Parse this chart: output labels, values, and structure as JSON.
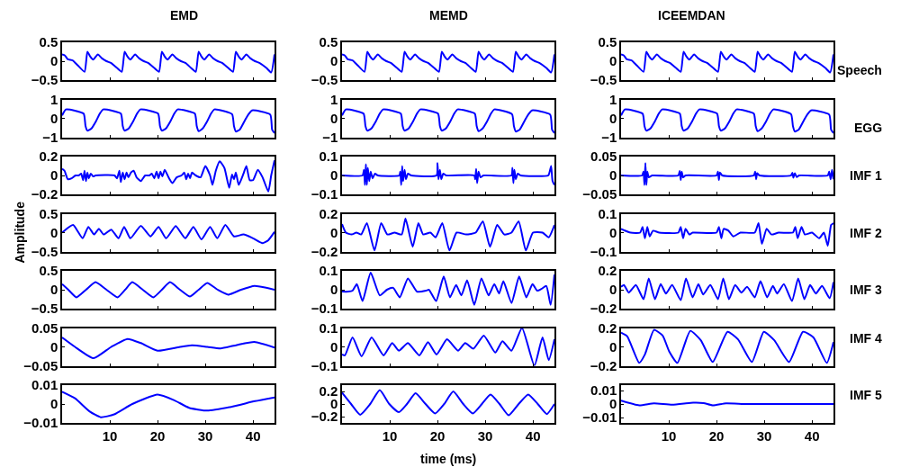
{
  "chart_data": [
    {
      "type": "line",
      "title": "EMD",
      "color": "#0000ff",
      "xlim": [
        0,
        44.5
      ],
      "xticks": [
        10,
        20,
        30,
        40
      ],
      "ylim": [
        -0.5,
        0.5
      ],
      "yticks": [
        -0.5,
        0,
        0.5
      ],
      "tick_labels": "y",
      "x": [
        0,
        0.6,
        1.2,
        2.2,
        3.2,
        4.7,
        5.3,
        5.9,
        6.5,
        7.5,
        8.3,
        9.3,
        10.3,
        11.5,
        12.5,
        13.1,
        13.7,
        14.3,
        15.3,
        16.1,
        17.1,
        18.1,
        19.3,
        20.3,
        20.9,
        21.5,
        22.1,
        23.1,
        23.9,
        24.9,
        25.9,
        27.0,
        28.0,
        28.6,
        29.2,
        29.8,
        30.8,
        31.6,
        32.6,
        33.6,
        34.8,
        35.8,
        36.4,
        37.0,
        37.6,
        38.6,
        39.4,
        40.4,
        41.4,
        42.8,
        43.8,
        44.5
      ],
      "values": [
        0.18,
        0.15,
        0.05,
        0.02,
        -0.1,
        -0.28,
        0.25,
        0.12,
        0.04,
        0.18,
        0.08,
        0.0,
        -0.05,
        -0.18,
        -0.28,
        0.25,
        0.12,
        0.04,
        0.18,
        0.08,
        0.0,
        -0.05,
        -0.18,
        -0.28,
        0.25,
        0.12,
        0.04,
        0.18,
        0.08,
        0.0,
        -0.05,
        -0.18,
        -0.28,
        0.25,
        0.12,
        0.04,
        0.18,
        0.08,
        0.0,
        -0.05,
        -0.18,
        -0.28,
        0.25,
        0.12,
        0.04,
        0.18,
        0.08,
        0.0,
        -0.05,
        -0.18,
        -0.3,
        0.18
      ]
    },
    {
      "type": "line",
      "title": "MEMD",
      "color": "#0000ff",
      "xlim": [
        0,
        44.5
      ],
      "xticks": [
        10,
        20,
        30,
        40
      ],
      "ylim": [
        -0.5,
        0.5
      ],
      "yticks": [
        -0.5,
        0,
        0.5
      ],
      "tick_labels": "y",
      "x": [
        0,
        0.6,
        1.2,
        2.2,
        3.2,
        4.7,
        5.3,
        5.9,
        6.5,
        7.5,
        8.3,
        9.3,
        10.3,
        11.5,
        12.5,
        13.1,
        13.7,
        14.3,
        15.3,
        16.1,
        17.1,
        18.1,
        19.3,
        20.3,
        20.9,
        21.5,
        22.1,
        23.1,
        23.9,
        24.9,
        25.9,
        27.0,
        28.0,
        28.6,
        29.2,
        29.8,
        30.8,
        31.6,
        32.6,
        33.6,
        34.8,
        35.8,
        36.4,
        37.0,
        37.6,
        38.6,
        39.4,
        40.4,
        41.4,
        42.8,
        43.8,
        44.5
      ],
      "values": [
        0.18,
        0.15,
        0.05,
        0.02,
        -0.1,
        -0.28,
        0.25,
        0.12,
        0.04,
        0.18,
        0.08,
        0.0,
        -0.05,
        -0.18,
        -0.28,
        0.25,
        0.12,
        0.04,
        0.18,
        0.08,
        0.0,
        -0.05,
        -0.18,
        -0.28,
        0.25,
        0.12,
        0.04,
        0.18,
        0.08,
        0.0,
        -0.05,
        -0.18,
        -0.28,
        0.25,
        0.12,
        0.04,
        0.18,
        0.08,
        0.0,
        -0.05,
        -0.18,
        -0.28,
        0.25,
        0.12,
        0.04,
        0.18,
        0.08,
        0.0,
        -0.05,
        -0.18,
        -0.3,
        0.18
      ]
    },
    {
      "type": "line",
      "title": "ICEEMDAN",
      "annotations": [
        "Speech"
      ],
      "color": "#0000ff",
      "xlim": [
        0,
        44.5
      ],
      "xticks": [
        10,
        20,
        30,
        40
      ],
      "ylim": [
        -0.5,
        0.5
      ],
      "yticks": [
        -0.5,
        0,
        0.5
      ],
      "tick_labels": "y",
      "x": [
        0,
        0.6,
        1.2,
        2.2,
        3.2,
        4.7,
        5.3,
        5.9,
        6.5,
        7.5,
        8.3,
        9.3,
        10.3,
        11.5,
        12.5,
        13.1,
        13.7,
        14.3,
        15.3,
        16.1,
        17.1,
        18.1,
        19.3,
        20.3,
        20.9,
        21.5,
        22.1,
        23.1,
        23.9,
        24.9,
        25.9,
        27.0,
        28.0,
        28.6,
        29.2,
        29.8,
        30.8,
        31.6,
        32.6,
        33.6,
        34.8,
        35.8,
        36.4,
        37.0,
        37.6,
        38.6,
        39.4,
        40.4,
        41.4,
        42.8,
        43.8,
        44.5
      ],
      "values": [
        0.18,
        0.15,
        0.05,
        0.02,
        -0.1,
        -0.28,
        0.25,
        0.12,
        0.04,
        0.18,
        0.08,
        0.0,
        -0.05,
        -0.18,
        -0.28,
        0.25,
        0.12,
        0.04,
        0.18,
        0.08,
        0.0,
        -0.05,
        -0.18,
        -0.28,
        0.25,
        0.12,
        0.04,
        0.18,
        0.08,
        0.0,
        -0.05,
        -0.18,
        -0.28,
        0.25,
        0.12,
        0.04,
        0.18,
        0.08,
        0.0,
        -0.05,
        -0.18,
        -0.28,
        0.25,
        0.12,
        0.04,
        0.18,
        0.08,
        0.0,
        -0.05,
        -0.18,
        -0.3,
        0.18
      ]
    },
    {
      "type": "line",
      "color": "#0000ff",
      "xlim": [
        0,
        44.5
      ],
      "xticks": [
        10,
        20,
        30,
        40
      ],
      "ylim": [
        -1,
        1
      ],
      "yticks": [
        -1,
        0,
        1
      ],
      "tick_labels": "y",
      "x": [
        0,
        0.8,
        4.5,
        4.9,
        5.3,
        6.1,
        7.1,
        7.9,
        8.6,
        12.3,
        12.7,
        13.1,
        13.9,
        14.9,
        15.7,
        16.4,
        20.1,
        20.5,
        20.9,
        21.7,
        22.7,
        23.5,
        24.2,
        27.8,
        28.2,
        28.6,
        29.4,
        30.4,
        31.2,
        31.9,
        35.6,
        36.0,
        36.4,
        37.2,
        38.2,
        39.0,
        39.8,
        43.6,
        44.0,
        44.5
      ],
      "values": [
        0.15,
        0.47,
        0.25,
        -0.4,
        -0.65,
        -0.55,
        -0.15,
        0.25,
        0.47,
        0.25,
        -0.4,
        -0.65,
        -0.55,
        -0.15,
        0.25,
        0.47,
        0.25,
        -0.4,
        -0.65,
        -0.55,
        -0.15,
        0.25,
        0.47,
        0.25,
        -0.4,
        -0.68,
        -0.55,
        -0.15,
        0.25,
        0.47,
        0.22,
        -0.4,
        -0.7,
        -0.6,
        -0.15,
        0.2,
        0.42,
        0.2,
        -0.6,
        -0.78
      ]
    },
    {
      "type": "line",
      "color": "#0000ff",
      "xlim": [
        0,
        44.5
      ],
      "xticks": [
        10,
        20,
        30,
        40
      ],
      "ylim": [
        -1,
        1
      ],
      "yticks": [
        -1,
        0,
        1
      ],
      "tick_labels": "y",
      "x": [
        0,
        0.8,
        4.5,
        4.9,
        5.3,
        6.1,
        7.1,
        7.9,
        8.6,
        12.3,
        12.7,
        13.1,
        13.9,
        14.9,
        15.7,
        16.4,
        20.1,
        20.5,
        20.9,
        21.7,
        22.7,
        23.5,
        24.2,
        27.8,
        28.2,
        28.6,
        29.4,
        30.4,
        31.2,
        31.9,
        35.6,
        36.0,
        36.4,
        37.2,
        38.2,
        39.0,
        39.8,
        43.6,
        44.0,
        44.5
      ],
      "values": [
        0.15,
        0.47,
        0.25,
        -0.4,
        -0.65,
        -0.55,
        -0.15,
        0.25,
        0.47,
        0.25,
        -0.4,
        -0.65,
        -0.55,
        -0.15,
        0.25,
        0.47,
        0.25,
        -0.4,
        -0.65,
        -0.55,
        -0.15,
        0.25,
        0.47,
        0.25,
        -0.4,
        -0.68,
        -0.55,
        -0.15,
        0.25,
        0.47,
        0.22,
        -0.4,
        -0.7,
        -0.6,
        -0.15,
        0.2,
        0.42,
        0.2,
        -0.6,
        -0.78
      ]
    },
    {
      "type": "line",
      "annotations": [
        "EGG"
      ],
      "color": "#0000ff",
      "xlim": [
        0,
        44.5
      ],
      "xticks": [
        10,
        20,
        30,
        40
      ],
      "ylim": [
        -1,
        1
      ],
      "yticks": [
        -1,
        0,
        1
      ],
      "tick_labels": "y",
      "x": [
        0,
        0.8,
        4.5,
        4.9,
        5.3,
        6.1,
        7.1,
        7.9,
        8.6,
        12.3,
        12.7,
        13.1,
        13.9,
        14.9,
        15.7,
        16.4,
        20.1,
        20.5,
        20.9,
        21.7,
        22.7,
        23.5,
        24.2,
        27.8,
        28.2,
        28.6,
        29.4,
        30.4,
        31.2,
        31.9,
        35.6,
        36.0,
        36.4,
        37.2,
        38.2,
        39.0,
        39.8,
        43.6,
        44.0,
        44.5
      ],
      "values": [
        0.15,
        0.47,
        0.25,
        -0.4,
        -0.65,
        -0.55,
        -0.15,
        0.25,
        0.47,
        0.25,
        -0.4,
        -0.65,
        -0.55,
        -0.15,
        0.25,
        0.47,
        0.25,
        -0.4,
        -0.65,
        -0.55,
        -0.15,
        0.25,
        0.47,
        0.25,
        -0.4,
        -0.68,
        -0.55,
        -0.15,
        0.25,
        0.47,
        0.22,
        -0.4,
        -0.7,
        -0.6,
        -0.15,
        0.2,
        0.42,
        0.2,
        -0.6,
        -0.78
      ]
    },
    {
      "type": "line",
      "color": "#0000ff",
      "xlim": [
        0,
        44.5
      ],
      "xticks": [
        10,
        20,
        30,
        40
      ],
      "ylim": [
        -0.2,
        0.2
      ],
      "yticks": [
        -0.2,
        0,
        0.2
      ],
      "tick_labels": "y",
      "x": [
        0,
        0.5,
        1.2,
        2.0,
        2.8,
        3.5,
        4.0,
        4.4,
        4.7,
        5.0,
        5.3,
        5.6,
        6.0,
        6.5,
        7,
        11,
        11.5,
        12.0,
        12.3,
        12.7,
        13.1,
        13.5,
        13.9,
        14.4,
        15.0,
        15.6,
        16.5,
        17.4,
        18.3,
        18.8,
        19.3,
        19.8,
        20.2,
        20.6,
        21.0,
        21.5,
        22.3,
        23.1,
        24.0,
        25.0,
        25.6,
        26.0,
        26.4,
        26.8,
        27.2,
        28.0,
        29.0,
        30.0,
        31.0,
        31.5,
        32.2,
        33.0,
        34.0,
        35.0,
        35.6,
        36.0,
        36.4,
        37.0,
        38.0,
        38.6,
        39.3,
        40.0,
        41.0,
        42.0,
        43.2,
        43.8,
        44.5
      ],
      "values": [
        0.07,
        0.05,
        -0.04,
        -0.03,
        0.0,
        0.0,
        0.02,
        -0.05,
        0.05,
        -0.06,
        0.03,
        -0.03,
        0.02,
        -0.01,
        0.0,
        0.0,
        -0.03,
        0.05,
        -0.07,
        0.03,
        -0.04,
        0.03,
        -0.02,
        0.03,
        0.05,
        -0.02,
        -0.06,
        0.0,
        0.0,
        0.02,
        -0.03,
        0.04,
        -0.03,
        0.04,
        -0.01,
        0.06,
        -0.02,
        -0.08,
        -0.02,
        0.0,
        0.03,
        -0.04,
        0.02,
        -0.03,
        0.03,
        0.0,
        -0.02,
        0.1,
        0.0,
        -0.1,
        0.05,
        0.15,
        0.08,
        -0.13,
        0.01,
        -0.04,
        0.03,
        -0.1,
        0.02,
        0.1,
        -0.05,
        -0.05,
        0.06,
        -0.02,
        -0.17,
        0.0,
        0.16
      ]
    },
    {
      "type": "line",
      "color": "#0000ff",
      "xlim": [
        0,
        44.5
      ],
      "xticks": [
        10,
        20,
        30,
        40
      ],
      "ylim": [
        -0.1,
        0.1
      ],
      "yticks": [
        -0.1,
        0,
        0.1
      ],
      "tick_labels": "y",
      "x": [
        0,
        4.3,
        4.6,
        4.8,
        5.0,
        5.2,
        5.4,
        5.7,
        6.0,
        6.4,
        6.9,
        7.5,
        12.0,
        12.2,
        12.4,
        12.6,
        12.8,
        13.1,
        13.4,
        13.8,
        14.5,
        19.8,
        20.0,
        20.2,
        20.5,
        20.8,
        21.2,
        21.8,
        27.7,
        27.9,
        28.1,
        28.3,
        28.6,
        29.0,
        29.6,
        35.5,
        35.7,
        35.9,
        36.1,
        36.4,
        36.8,
        37.4,
        43.2,
        43.5,
        43.8,
        44.1,
        44.5
      ],
      "values": [
        0,
        0,
        0.03,
        -0.05,
        0.06,
        -0.05,
        0.04,
        -0.03,
        0.02,
        -0.015,
        0.01,
        0,
        0,
        0.02,
        -0.05,
        0.05,
        -0.03,
        0.03,
        -0.02,
        0.01,
        0,
        0,
        0.065,
        -0.02,
        0.03,
        -0.02,
        0.01,
        0,
        0,
        -0.02,
        0.035,
        -0.04,
        0.02,
        -0.01,
        0,
        0,
        0.04,
        -0.04,
        0.03,
        -0.02,
        0.01,
        0,
        0,
        0.02,
        0.05,
        -0.03,
        -0.05
      ]
    },
    {
      "type": "line",
      "annotations": [
        "IMF 1"
      ],
      "color": "#0000ff",
      "xlim": [
        0,
        44.5
      ],
      "xticks": [
        10,
        20,
        30,
        40
      ],
      "ylim": [
        -0.05,
        0.05
      ],
      "yticks": [
        -0.05,
        0,
        0.05
      ],
      "tick_labels": "y",
      "x": [
        0,
        4.4,
        4.7,
        4.9,
        5.1,
        5.3,
        5.5,
        5.8,
        6.5,
        12.0,
        12.3,
        12.5,
        12.7,
        13.0,
        13.5,
        20.0,
        20.3,
        20.5,
        20.7,
        21.2,
        27.8,
        28.1,
        28.3,
        28.5,
        29.0,
        35.6,
        35.9,
        36.1,
        36.4,
        36.8,
        37.3,
        43.3,
        43.6,
        43.9,
        44.2,
        44.5
      ],
      "values": [
        0,
        0,
        0.01,
        -0.025,
        0.033,
        -0.025,
        0.01,
        -0.005,
        0,
        0,
        0.012,
        -0.012,
        0.01,
        -0.005,
        0,
        0,
        0.01,
        -0.012,
        0.008,
        0,
        0,
        0.01,
        -0.01,
        0.006,
        0,
        0,
        0.007,
        -0.006,
        0.006,
        -0.004,
        0,
        0,
        0.01,
        -0.01,
        0.015,
        -0.01
      ]
    },
    {
      "type": "line",
      "ylabel": "Amplitude",
      "color": "#0000ff",
      "xlim": [
        0,
        44.5
      ],
      "xticks": [
        10,
        20,
        30,
        40
      ],
      "ylim": [
        -0.5,
        0.5
      ],
      "yticks": [
        -0.5,
        0,
        0.5
      ],
      "tick_labels": "y",
      "x": [
        0,
        2.3,
        4.3,
        5.5,
        6.7,
        7.7,
        8.7,
        10.3,
        11.8,
        13.0,
        14.3,
        16.5,
        18.5,
        20.2,
        21.8,
        23.8,
        25.8,
        27.5,
        29.2,
        31.0,
        32.5,
        34.2,
        36.0,
        38.0,
        40,
        42.0,
        43.2,
        44.5
      ],
      "values": [
        0.0,
        0.2,
        -0.15,
        0.15,
        -0.05,
        0.1,
        -0.05,
        0.08,
        -0.15,
        0.15,
        -0.15,
        0.18,
        -0.1,
        0.15,
        -0.15,
        0.17,
        -0.15,
        0.15,
        -0.18,
        0.15,
        -0.15,
        0.2,
        -0.1,
        -0.05,
        -0.15,
        -0.28,
        -0.2,
        0.02
      ]
    },
    {
      "type": "line",
      "color": "#0000ff",
      "xlim": [
        0,
        44.5
      ],
      "xticks": [
        10,
        20,
        30,
        40
      ],
      "ylim": [
        -0.2,
        0.2
      ],
      "yticks": [
        -0.2,
        0,
        0.2
      ],
      "tick_labels": "y",
      "x": [
        0,
        0.8,
        2,
        3,
        4,
        5.2,
        6.8,
        8.2,
        9.5,
        11,
        12.5,
        13.3,
        14.8,
        16.0,
        17.0,
        18.5,
        19.6,
        21.0,
        22.5,
        24,
        26,
        28,
        29.5,
        31,
        32.5,
        34.0,
        35.5,
        37.0,
        38.5,
        40.0,
        42.0,
        43.3,
        44.5
      ],
      "values": [
        0.09,
        0.0,
        -0.02,
        0.0,
        -0.02,
        0.1,
        -0.19,
        0.1,
        -0.02,
        0.0,
        -0.02,
        0.15,
        -0.15,
        0.1,
        -0.02,
        0.0,
        -0.05,
        0.1,
        -0.19,
        0.0,
        -0.02,
        0.0,
        0.12,
        -0.15,
        0.08,
        -0.02,
        0.0,
        0.12,
        -0.19,
        0.0,
        0.0,
        -0.05,
        0.08
      ]
    },
    {
      "type": "line",
      "annotations": [
        "IMF 2"
      ],
      "color": "#0000ff",
      "xlim": [
        0,
        44.5
      ],
      "xticks": [
        10,
        20,
        30,
        40
      ],
      "ylim": [
        -0.1,
        0.1
      ],
      "yticks": [
        -0.1,
        0,
        0.1
      ],
      "tick_labels": "y",
      "x": [
        0,
        2,
        4,
        4.5,
        5.0,
        5.5,
        6,
        6.7,
        8,
        12,
        12.5,
        13.0,
        13.5,
        14.3,
        15,
        20,
        20.5,
        21,
        21.5,
        22.5,
        23.5,
        25,
        28,
        28.8,
        29.5,
        30.5,
        31.5,
        33,
        36,
        36.5,
        37,
        37.8,
        38.5,
        40.0,
        41.5,
        42.5,
        43.3,
        44.0,
        44.5
      ],
      "values": [
        0.02,
        0.0,
        0.0,
        0.03,
        -0.03,
        0.03,
        -0.02,
        0.01,
        0,
        0,
        0.03,
        -0.03,
        0.02,
        -0.01,
        0,
        0,
        0.03,
        -0.03,
        0.02,
        0.01,
        -0.02,
        0,
        0,
        0.05,
        -0.06,
        0.02,
        -0.01,
        0,
        0,
        0.03,
        -0.03,
        0.03,
        -0.01,
        0.0,
        -0.03,
        0.0,
        -0.07,
        0.04,
        0.05
      ]
    },
    {
      "type": "line",
      "color": "#0000ff",
      "xlim": [
        0,
        44.5
      ],
      "xticks": [
        10,
        20,
        30,
        40
      ],
      "ylim": [
        -0.5,
        0.5
      ],
      "yticks": [
        -0.5,
        0,
        0.5
      ],
      "tick_labels": "y",
      "x": [
        0,
        1.3,
        3.0,
        5.0,
        7.0,
        9.3,
        11.6,
        13.2,
        14.7,
        16.9,
        19.1,
        20.9,
        22.6,
        24.7,
        26.8,
        28.6,
        30.4,
        32.6,
        34.8,
        37.5,
        40.3,
        42.5,
        44.5
      ],
      "values": [
        0.15,
        0.0,
        -0.2,
        0.0,
        0.2,
        0.0,
        -0.2,
        0.0,
        0.2,
        0.0,
        -0.2,
        0.0,
        0.2,
        0.0,
        -0.18,
        0.0,
        0.18,
        0.0,
        -0.13,
        0.0,
        0.1,
        0.06,
        0.0
      ]
    },
    {
      "type": "line",
      "color": "#0000ff",
      "xlim": [
        0,
        44.5
      ],
      "xticks": [
        10,
        20,
        30,
        40
      ],
      "ylim": [
        -0.1,
        0.1
      ],
      "yticks": [
        -0.1,
        0,
        0.1
      ],
      "tick_labels": "y",
      "x": [
        0,
        1.3,
        2.2,
        3.1,
        4.3,
        6.0,
        7.9,
        9.4,
        10.7,
        12.1,
        13.8,
        15.7,
        17.6,
        18.2,
        19.7,
        21.3,
        22.6,
        23.9,
        25.0,
        26.2,
        27.7,
        29.2,
        30.7,
        31.9,
        32.9,
        33.8,
        35.5,
        37.1,
        38.6,
        39.9,
        40.9,
        41.8,
        42.8,
        43.7,
        44.5
      ],
      "values": [
        -0.01,
        -0.01,
        -0.005,
        0.03,
        -0.06,
        0.09,
        -0.03,
        0.0,
        0.01,
        -0.04,
        0.06,
        -0.01,
        -0.005,
        0.0,
        -0.06,
        0.07,
        -0.04,
        0.025,
        -0.03,
        0.05,
        -0.08,
        0.06,
        -0.03,
        0.03,
        -0.02,
        0.045,
        -0.07,
        0.07,
        -0.04,
        0.03,
        -0.005,
        0.005,
        0.02,
        -0.08,
        0.08
      ]
    },
    {
      "type": "line",
      "annotations": [
        "IMF 3"
      ],
      "color": "#0000ff",
      "xlim": [
        0,
        44.5
      ],
      "xticks": [
        10,
        20,
        30,
        40
      ],
      "ylim": [
        -0.2,
        0.2
      ],
      "yticks": [
        -0.2,
        0,
        0.2
      ],
      "tick_labels": "y",
      "x": [
        0,
        0.6,
        1.6,
        3.1,
        4.7,
        5.8,
        7.1,
        8.3,
        9.4,
        10.7,
        12.5,
        13.6,
        15.0,
        16.2,
        17.2,
        18.7,
        20.3,
        21.4,
        22.6,
        23.9,
        25.2,
        26.4,
        28.0,
        29.2,
        30.6,
        31.8,
        32.7,
        34.1,
        35.8,
        37.1,
        38.4,
        39.6,
        40.8,
        42.1,
        43.7,
        44.5
      ],
      "values": [
        0.03,
        0.05,
        -0.03,
        0.05,
        -0.1,
        0.12,
        -0.1,
        0.06,
        -0.04,
        0.05,
        -0.11,
        0.12,
        -0.08,
        0.06,
        -0.05,
        0.05,
        -0.1,
        0.12,
        -0.1,
        0.05,
        -0.03,
        0.03,
        -0.08,
        0.09,
        -0.08,
        0.04,
        -0.04,
        0.06,
        -0.12,
        0.12,
        -0.1,
        0.05,
        -0.04,
        0.04,
        -0.09,
        0.08
      ]
    },
    {
      "type": "line",
      "color": "#0000ff",
      "xlim": [
        0,
        44.5
      ],
      "xticks": [
        10,
        20,
        30,
        40
      ],
      "ylim": [
        -0.05,
        0.05
      ],
      "yticks": [
        -0.05,
        0,
        0.05
      ],
      "tick_labels": "y",
      "x": [
        0,
        2.7,
        6.6,
        10.3,
        13.7,
        16.5,
        20.0,
        24.7,
        27.2,
        30.4,
        33.2,
        36.6,
        40.3,
        44.5
      ],
      "values": [
        0.025,
        0.0,
        -0.03,
        0.0,
        0.021,
        0.01,
        -0.01,
        0.0,
        0.004,
        0.0,
        -0.004,
        0.005,
        0.013,
        -0.002
      ]
    },
    {
      "type": "line",
      "color": "#0000ff",
      "xlim": [
        0,
        44.5
      ],
      "xticks": [
        10,
        20,
        30,
        40
      ],
      "ylim": [
        -0.1,
        0.1
      ],
      "yticks": [
        -0.1,
        0,
        0.1
      ],
      "tick_labels": "y",
      "x": [
        0,
        0.6,
        2.2,
        4.1,
        6.2,
        8.7,
        10.5,
        11.9,
        13.8,
        16.2,
        18.0,
        19.8,
        22.0,
        24.3,
        25.8,
        27.5,
        29.7,
        32.1,
        33.6,
        35.5,
        37.7,
        40.3,
        42.0,
        43.3,
        44.5
      ],
      "values": [
        -0.04,
        -0.045,
        0.05,
        -0.05,
        0.05,
        -0.045,
        0.02,
        -0.02,
        0.02,
        -0.045,
        0.025,
        -0.04,
        0.04,
        -0.02,
        0.02,
        -0.01,
        0.06,
        -0.03,
        0.03,
        -0.02,
        0.1,
        -0.1,
        0.05,
        -0.07,
        0.04
      ]
    },
    {
      "type": "line",
      "annotations": [
        "IMF 4"
      ],
      "color": "#0000ff",
      "xlim": [
        0,
        44.5
      ],
      "xticks": [
        10,
        20,
        30,
        40
      ],
      "ylim": [
        -0.2,
        0.2
      ],
      "yticks": [
        -0.2,
        0,
        0.2
      ],
      "tick_labels": "y",
      "x": [
        0,
        1.3,
        3.8,
        5.0,
        6.9,
        8.7,
        10.1,
        11.8,
        14.5,
        16.7,
        19.2,
        22.3,
        24.5,
        27.4,
        29.9,
        32.1,
        35.2,
        38.1,
        40.3,
        43.1,
        44.5
      ],
      "values": [
        0.15,
        0.11,
        -0.17,
        -0.08,
        0.18,
        0.12,
        -0.05,
        -0.17,
        0.17,
        0.07,
        -0.16,
        0.16,
        0.08,
        -0.16,
        0.16,
        0.07,
        -0.16,
        0.16,
        0.1,
        -0.17,
        0.05
      ]
    },
    {
      "type": "line",
      "color": "#0000ff",
      "xlim": [
        0,
        44.5
      ],
      "xticks": [
        10,
        20,
        30,
        40
      ],
      "ylim": [
        -0.01,
        0.01
      ],
      "yticks": [
        -0.01,
        0,
        0.01
      ],
      "x": [
        0,
        2.7,
        5.8,
        8.1,
        10.9,
        14.7,
        20.0,
        23.5,
        26.6,
        30.4,
        35.4,
        40.4,
        44.5
      ],
      "values": [
        0.0065,
        0.003,
        -0.004,
        -0.007,
        -0.0055,
        0.0,
        0.005,
        0.002,
        -0.002,
        -0.0035,
        -0.0015,
        0.0015,
        0.0035
      ]
    },
    {
      "type": "line",
      "xlabel": "time (ms)",
      "color": "#0000ff",
      "xlim": [
        0,
        44.5
      ],
      "xticks": [
        10,
        20,
        30,
        40
      ],
      "ylim": [
        -0.3,
        0.3
      ],
      "yticks": [
        -0.2,
        0,
        0.2
      ],
      "x": [
        0,
        1.9,
        3.8,
        5.9,
        7.9,
        9.9,
        11.9,
        13.6,
        15.4,
        17.5,
        19.5,
        21.4,
        23.3,
        25.4,
        27.4,
        29.3,
        31.1,
        33.0,
        34.9,
        37.0,
        39.0,
        41.0,
        42.9,
        44.5
      ],
      "values": [
        0.18,
        0.0,
        -0.17,
        0.0,
        0.22,
        0.0,
        -0.13,
        0.0,
        0.17,
        0.0,
        -0.15,
        0.0,
        0.2,
        0.0,
        -0.15,
        0.0,
        0.15,
        0.0,
        -0.18,
        0.0,
        0.15,
        0.0,
        -0.16,
        0.0
      ]
    },
    {
      "type": "line",
      "annotations": [
        "IMF 5"
      ],
      "color": "#0000ff",
      "xlim": [
        0,
        44.5
      ],
      "xticks": [
        10,
        20,
        30,
        40
      ],
      "ylim": [
        -0.014,
        0.014
      ],
      "yticks": [
        -0.01,
        0,
        0.01
      ],
      "x": [
        0,
        3.8,
        6.9,
        10.7,
        15.1,
        17.3,
        19.2,
        22.0,
        26.4,
        44.5
      ],
      "values": [
        0.0025,
        -0.001,
        0.0005,
        -0.0005,
        0.001,
        0.0007,
        -0.001,
        0.0005,
        0.0,
        0.0
      ]
    }
  ]
}
